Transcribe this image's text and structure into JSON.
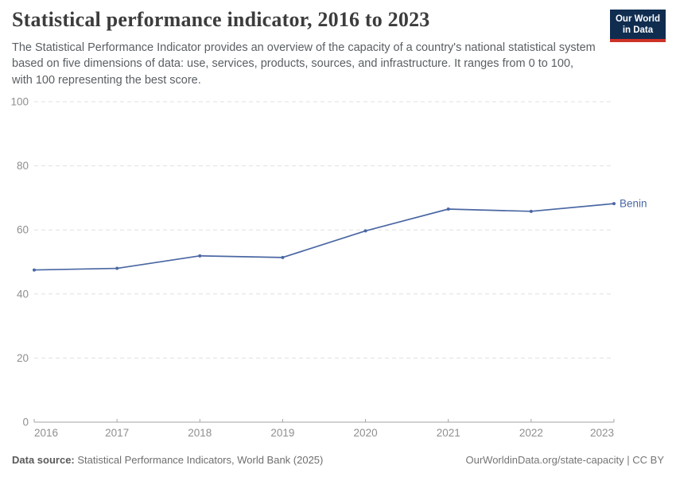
{
  "header": {
    "title": "Statistical performance indicator, 2016 to 2023",
    "subtitle": "The Statistical Performance Indicator provides an overview of the capacity of a country's national statistical system based on five dimensions of data: use, services, products, sources, and infrastructure. It ranges from 0 to 100, with 100 representing the best score.",
    "logo": {
      "line1": "Our World",
      "line2": "in Data"
    }
  },
  "chart_data": {
    "type": "line",
    "title": "Statistical performance indicator, 2016 to 2023",
    "x": [
      2016,
      2017,
      2018,
      2019,
      2020,
      2021,
      2022,
      2023
    ],
    "series": [
      {
        "name": "Benin",
        "values": [
          47.5,
          48.0,
          51.9,
          51.4,
          59.7,
          66.5,
          65.8,
          68.2
        ],
        "color": "#4a67a3"
      }
    ],
    "xlabel": "",
    "ylabel": "",
    "ylim": [
      0,
      100
    ],
    "yticks": [
      0,
      20,
      40,
      60,
      80,
      100
    ],
    "grid": "dashed-horizontal",
    "legend": "end-of-line-label"
  },
  "footer": {
    "source_label": "Data source:",
    "source_text": " Statistical Performance Indicators, World Bank (2025)",
    "attribution": "OurWorldinData.org/state-capacity | CC BY"
  }
}
